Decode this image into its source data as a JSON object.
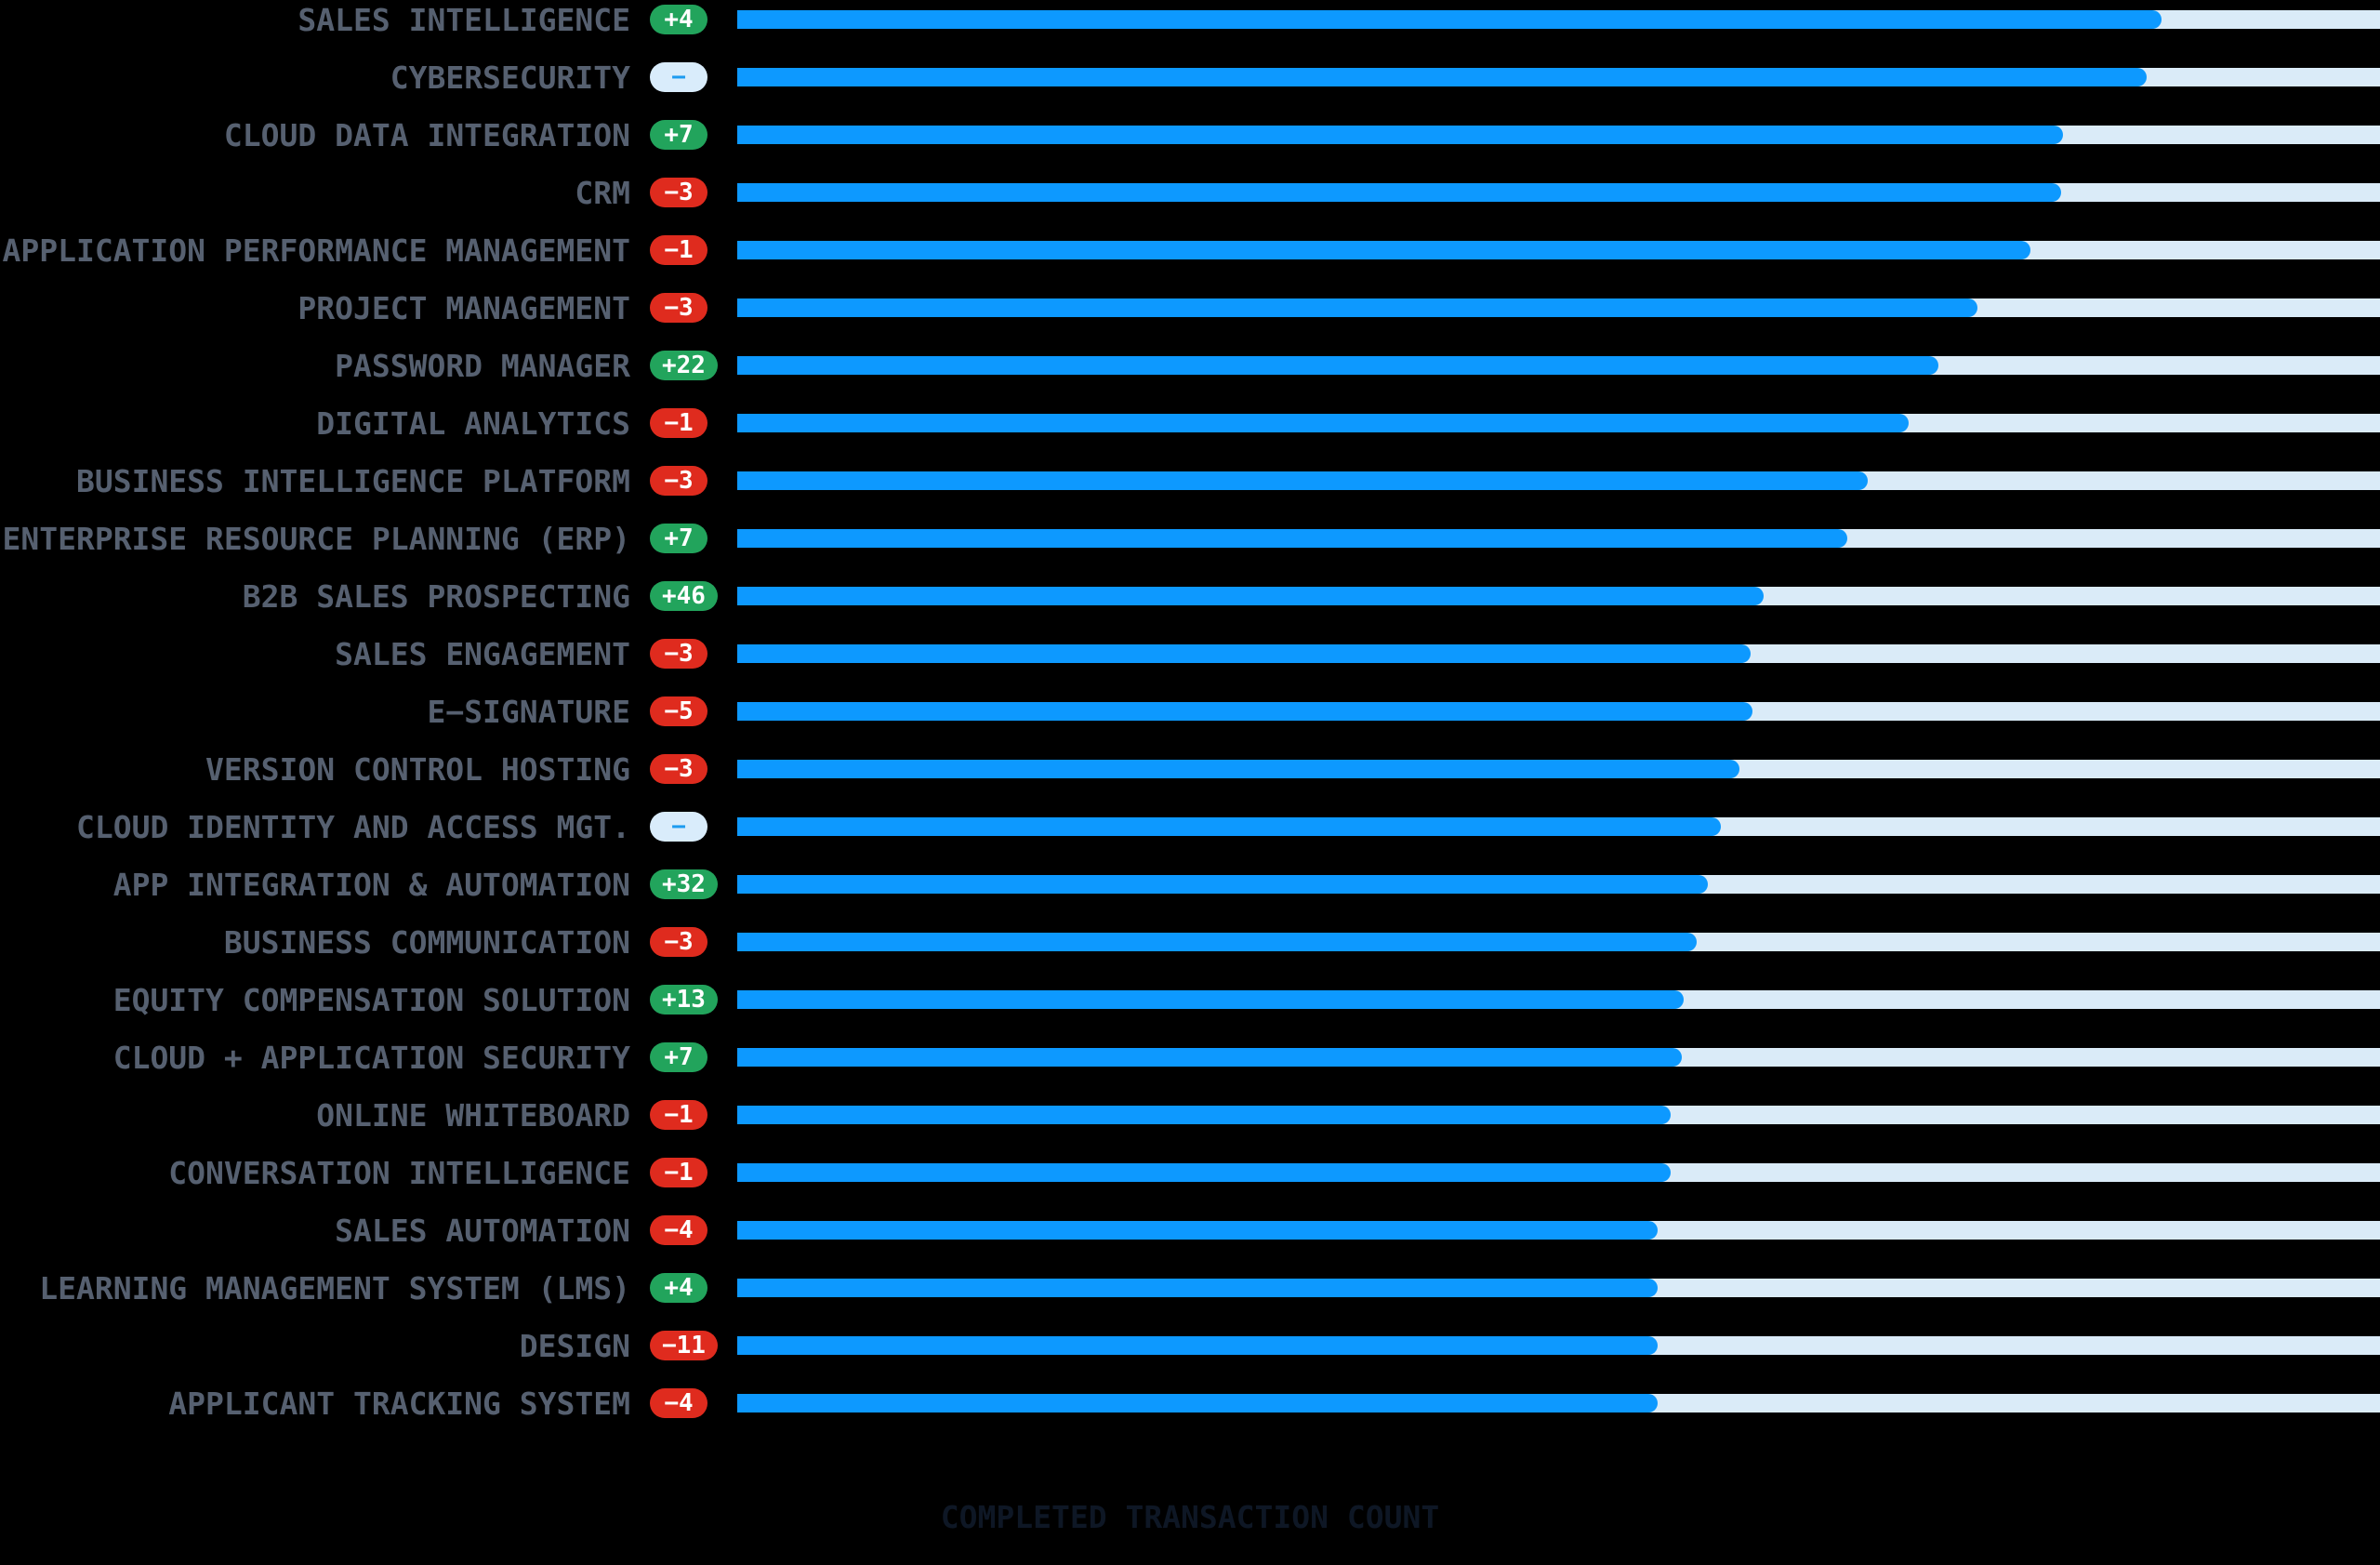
{
  "colors": {
    "background": "#000000",
    "bar": "#0D99FF",
    "track": "#DAEBF8",
    "badge_up": "#22A45C",
    "badge_down": "#DF2B1E",
    "badge_neutral_bg": "#D9ECFB",
    "badge_neutral_fg": "#1D9BF0",
    "label": "#566070",
    "axis_label": "#0E1725"
  },
  "chart_data": {
    "type": "bar",
    "orientation": "horizontal",
    "title": "",
    "xlabel": "COMPLETED TRANSACTION COUNT",
    "ylabel": "",
    "xlim_pct": [
      0,
      100
    ],
    "grid": false,
    "legend": "none",
    "note": "bar values are percent of full track length; badge = rank/position change",
    "rows": [
      {
        "label": "SALES INTELLIGENCE",
        "change": "+4",
        "change_type": "up",
        "value_pct": 86.7
      },
      {
        "label": "CYBERSECURITY",
        "change": "−",
        "change_type": "neutral",
        "value_pct": 85.8
      },
      {
        "label": "CLOUD DATA INTEGRATION",
        "change": "+7",
        "change_type": "up",
        "value_pct": 80.7
      },
      {
        "label": "CRM",
        "change": "−3",
        "change_type": "down",
        "value_pct": 80.6
      },
      {
        "label": "APPLICATION PERFORMANCE MANAGEMENT",
        "change": "−1",
        "change_type": "down",
        "value_pct": 78.7
      },
      {
        "label": "PROJECT MANAGEMENT",
        "change": "−3",
        "change_type": "down",
        "value_pct": 75.5
      },
      {
        "label": "PASSWORD MANAGER",
        "change": "+22",
        "change_type": "up",
        "value_pct": 73.1
      },
      {
        "label": "DIGITAL ANALYTICS",
        "change": "−1",
        "change_type": "down",
        "value_pct": 71.3
      },
      {
        "label": "BUSINESS INTELLIGENCE PLATFORM",
        "change": "−3",
        "change_type": "down",
        "value_pct": 68.8
      },
      {
        "label": "ENTERPRISE RESOURCE PLANNING (ERP)",
        "change": "+7",
        "change_type": "up",
        "value_pct": 67.6
      },
      {
        "label": "B2B SALES PROSPECTING",
        "change": "+46",
        "change_type": "up",
        "value_pct": 62.5
      },
      {
        "label": "SALES ENGAGEMENT",
        "change": "−3",
        "change_type": "down",
        "value_pct": 61.7
      },
      {
        "label": "E−SIGNATURE",
        "change": "−5",
        "change_type": "down",
        "value_pct": 61.8
      },
      {
        "label": "VERSION CONTROL HOSTING",
        "change": "−3",
        "change_type": "down",
        "value_pct": 61.0
      },
      {
        "label": "CLOUD IDENTITY AND ACCESS MGT.",
        "change": "−",
        "change_type": "neutral",
        "value_pct": 59.9
      },
      {
        "label": "APP INTEGRATION & AUTOMATION",
        "change": "+32",
        "change_type": "up",
        "value_pct": 59.1
      },
      {
        "label": "BUSINESS COMMUNICATION",
        "change": "−3",
        "change_type": "down",
        "value_pct": 58.4
      },
      {
        "label": "EQUITY COMPENSATION SOLUTION",
        "change": "+13",
        "change_type": "up",
        "value_pct": 57.6
      },
      {
        "label": "CLOUD + APPLICATION SECURITY",
        "change": "+7",
        "change_type": "up",
        "value_pct": 57.5
      },
      {
        "label": "ONLINE WHITEBOARD",
        "change": "−1",
        "change_type": "down",
        "value_pct": 56.8
      },
      {
        "label": "CONVERSATION INTELLIGENCE",
        "change": "−1",
        "change_type": "down",
        "value_pct": 56.8
      },
      {
        "label": "SALES AUTOMATION",
        "change": "−4",
        "change_type": "down",
        "value_pct": 56.0
      },
      {
        "label": "LEARNING MANAGEMENT SYSTEM (LMS)",
        "change": "+4",
        "change_type": "up",
        "value_pct": 56.0
      },
      {
        "label": "DESIGN",
        "change": "−11",
        "change_type": "down",
        "value_pct": 56.0
      },
      {
        "label": "APPLICANT TRACKING SYSTEM",
        "change": "−4",
        "change_type": "down",
        "value_pct": 56.0
      }
    ]
  }
}
